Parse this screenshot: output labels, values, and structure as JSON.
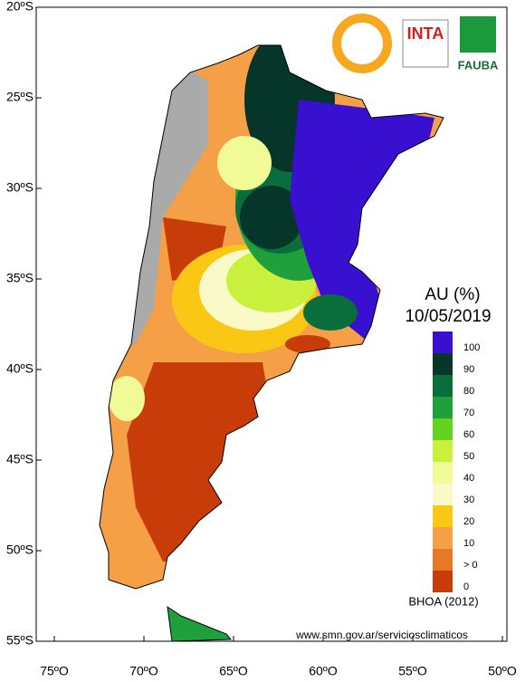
{
  "map": {
    "latitudes": [
      "20ºS",
      "25ºS",
      "30ºS",
      "35ºS",
      "40ºS",
      "45ºS",
      "50ºS",
      "55ºS"
    ],
    "longitudes": [
      "75ºO",
      "70ºO",
      "65ºO",
      "60ºO",
      "55ºO",
      "50ºO"
    ],
    "title": "AU (%)",
    "date": "10/05/2019",
    "legend": [
      {
        "label": "100",
        "color": "#3a10d0"
      },
      {
        "label": "90",
        "color": "#06352a"
      },
      {
        "label": "80",
        "color": "#0a6e3c"
      },
      {
        "label": "70",
        "color": "#1fa03c"
      },
      {
        "label": "60",
        "color": "#64d21e"
      },
      {
        "label": "50",
        "color": "#c8f03c"
      },
      {
        "label": "40",
        "color": "#f0fa96"
      },
      {
        "label": "30",
        "color": "#fafac8"
      },
      {
        "label": "20",
        "color": "#fac814"
      },
      {
        "label": "10",
        "color": "#f5a046"
      },
      {
        "label": "> 0",
        "color": "#e67828"
      },
      {
        "label": "0",
        "color": "#c83c0a"
      }
    ],
    "model": "BHOA (2012)",
    "url": "www.smn.gov.ar/serviciosclimaticos",
    "logos": [
      "INTA",
      "FAUBA"
    ]
  }
}
